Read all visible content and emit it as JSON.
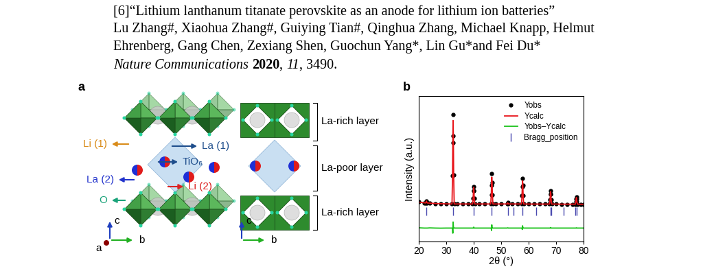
{
  "header": {
    "title_line": "[6]“Lithium lanthanum titanate perovskite as an anode for lithium ion batteries”",
    "author_lines": [
      "Lu Zhang#, Xiaohua Zhang#, Guiying Tian#, Qinghua Zhang, Michael Knapp, Helmut",
      "Ehrenberg, Gang Chen, Zexiang Shen, Guochun Yang*, Lin Gu*and Fei Du*"
    ],
    "journal_segments": [
      {
        "text": "Nature Communications ",
        "style": "italic"
      },
      {
        "text": "2020",
        "style": "bold"
      },
      {
        "text": ", ",
        "style": "normal"
      },
      {
        "text": "11",
        "style": "italic"
      },
      {
        "text": ", 3490.",
        "style": "normal"
      }
    ]
  },
  "panel_labels": [
    "a",
    "b"
  ],
  "panel_a": {
    "atom_labels": [
      "Li (1)",
      "La (1)",
      "TiO₆",
      "La (2)",
      "Li (2)",
      "O"
    ],
    "axes_left": [
      "c",
      "a",
      "b"
    ],
    "axes_right": [
      "c",
      "b"
    ],
    "layers": [
      "La-rich layer",
      "La-poor layer",
      "La-rich layer"
    ]
  },
  "chart_data": {
    "type": "line",
    "xlabel": "2θ (°)",
    "ylabel": "Intensity (a.u.)",
    "xlim": [
      20,
      80
    ],
    "xticks": [
      20,
      30,
      40,
      50,
      60,
      70,
      80
    ],
    "ylim": [
      -310,
      1260
    ],
    "yticks": [],
    "tick_labels": "x",
    "legend": "upper right",
    "x": [
      20,
      22,
      22.5,
      22.7,
      22.8,
      22.9,
      23.1,
      24,
      26,
      28,
      30,
      32.1,
      32.3,
      32.4,
      32.5,
      32.6,
      32.7,
      32.9,
      34,
      36,
      38,
      39.6,
      39.8,
      39.9,
      40.0,
      40.1,
      40.2,
      40.4,
      42,
      44,
      46.2,
      46.4,
      46.5,
      46.6,
      46.7,
      46.8,
      47.0,
      48,
      50,
      52.2,
      52.4,
      52.6,
      54,
      56,
      57.4,
      57.6,
      57.7,
      57.8,
      57.9,
      58.0,
      58.2,
      60,
      62,
      64,
      66,
      67.6,
      67.8,
      67.9,
      68.0,
      68.1,
      68.2,
      68.4,
      70,
      72,
      74,
      76,
      77.0,
      77.2,
      77.3,
      77.4,
      77.5,
      77.6,
      77.8,
      79,
      80
    ],
    "series": [
      {
        "name": "Yobs",
        "type": "scatter",
        "marker": "o",
        "color": "#000000",
        "values": [
          118,
          108,
          106,
          113,
          126,
          113,
          106,
          106,
          100,
          97,
          96,
          95,
          400,
          760,
          1060,
          830,
          410,
          95,
          95,
          95,
          95,
          95,
          158,
          239,
          285,
          239,
          158,
          95,
          95,
          95,
          95,
          197,
          300,
          420,
          327,
          197,
          95,
          95,
          95,
          95,
          110,
          95,
          95,
          95,
          95,
          183,
          280,
          370,
          295,
          183,
          95,
          94,
          94,
          94,
          94,
          94,
          141,
          202,
          235,
          202,
          141,
          94,
          94,
          93,
          93,
          93,
          93,
          118,
          151,
          168,
          151,
          118,
          93,
          92,
          92
        ]
      },
      {
        "name": "Ycalc",
        "type": "line",
        "line_style": "solid",
        "color": "#e8141a",
        "values": [
          115,
          108,
          106,
          113,
          126,
          113,
          106,
          104,
          100,
          98,
          96,
          95,
          410,
          815,
          995,
          815,
          410,
          95,
          95,
          95,
          95,
          95,
          158,
          239,
          275,
          239,
          158,
          95,
          95,
          95,
          95,
          197,
          327,
          385,
          327,
          197,
          95,
          95,
          95,
          95,
          107,
          95,
          95,
          95,
          95,
          183,
          295,
          345,
          295,
          183,
          95,
          94,
          94,
          94,
          94,
          94,
          141,
          202,
          229,
          202,
          141,
          94,
          94,
          93,
          93,
          93,
          93,
          118,
          151,
          165,
          151,
          118,
          93,
          92,
          92
        ]
      },
      {
        "name": "Yobs–Ycalc",
        "type": "line",
        "line_style": "solid",
        "color": "#19c219",
        "values": [
          -162,
          -165,
          -165,
          -165,
          -165,
          -165,
          -165,
          -163,
          -165,
          -166,
          -165,
          -165,
          -175,
          -220,
          -100,
          -150,
          -165,
          -165,
          -165,
          -165,
          -165,
          -165,
          -165,
          -165,
          -155,
          -165,
          -165,
          -165,
          -165,
          -165,
          -165,
          -165,
          -192,
          -130,
          -165,
          -165,
          -165,
          -165,
          -165,
          -165,
          -162,
          -165,
          -165,
          -165,
          -165,
          -165,
          -180,
          -140,
          -165,
          -165,
          -165,
          -165,
          -165,
          -165,
          -165,
          -165,
          -165,
          -165,
          -159,
          -165,
          -165,
          -165,
          -165,
          -165,
          -165,
          -165,
          -165,
          -165,
          -165,
          -162,
          -165,
          -165,
          -165,
          -165,
          -165
        ]
      },
      {
        "name": "Bragg_position",
        "type": "scatter",
        "marker": "|",
        "color": "#4b4bb0",
        "x": [
          22.8,
          32.5,
          40.0,
          46.6,
          52.4,
          54.6,
          57.8,
          62.8,
          67.9,
          68.3,
          72.8,
          77.1,
          77.5
        ],
        "values": [
          15,
          15,
          15,
          15,
          15,
          15,
          15,
          15,
          15,
          15,
          15,
          15,
          15
        ]
      }
    ]
  }
}
